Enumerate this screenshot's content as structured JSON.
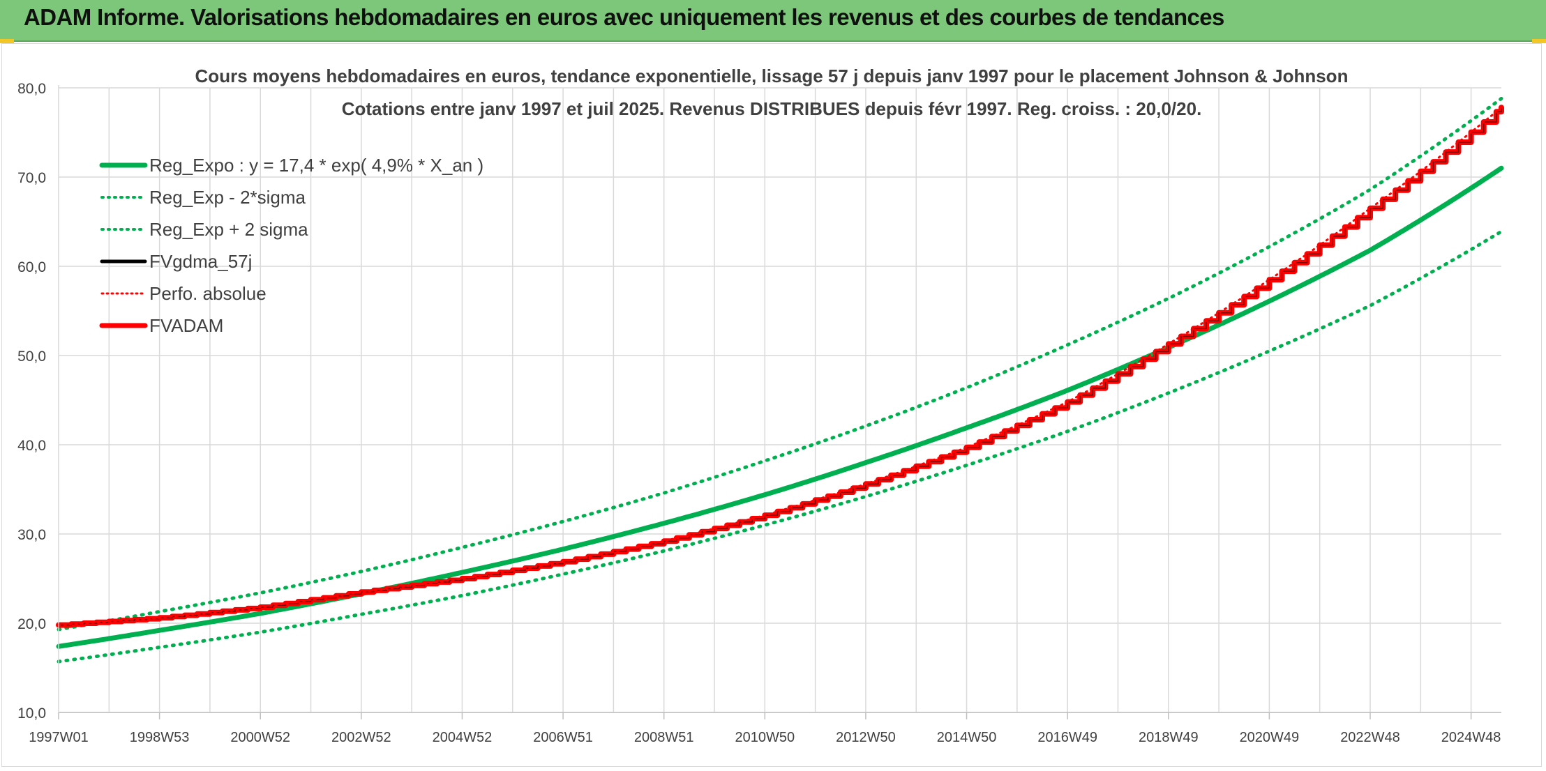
{
  "header": {
    "title": "ADAM Informe. Valorisations hebdomadaires en euros avec uniquement les revenus et des courbes de tendances"
  },
  "colors": {
    "header_bg": "#7dc77a",
    "green": "#00b050",
    "red": "#ff0000",
    "black": "#000000",
    "grid": "#d9d9d9"
  },
  "chart_data": {
    "type": "line",
    "title": "Cours moyens hebdomadaires en euros, tendance exponentielle, lissage 57 j depuis janv 1997 pour le placement Johnson & Johnson",
    "subtitle": "Cotations entre janv 1997 et juil 2025. Revenus DISTRIBUES depuis févr 1997. Reg. croiss. : 20,0/20.",
    "xlabel": "",
    "ylabel": "",
    "ylim": [
      10,
      80
    ],
    "y_ticks": [
      "10,0",
      "20,0",
      "30,0",
      "40,0",
      "50,0",
      "60,0",
      "70,0",
      "80,0"
    ],
    "x_ticks": [
      "1997W01",
      "1998W53",
      "2000W52",
      "2002W52",
      "2004W52",
      "2006W51",
      "2008W51",
      "2010W50",
      "2012W50",
      "2014W50",
      "2016W49",
      "2018W49",
      "2020W49",
      "2022W48",
      "2024W48"
    ],
    "x_tick_years": [
      1997.0,
      1999.0,
      2001.0,
      2003.0,
      2005.0,
      2007.0,
      2009.0,
      2011.0,
      2013.0,
      2015.0,
      2017.0,
      2019.0,
      2021.0,
      2023.0,
      2025.0
    ],
    "x_range": [
      1997.0,
      2025.6
    ],
    "grid": true,
    "legend_position": "top-left",
    "legend": [
      {
        "name": "Reg_Expo : y = 17,4 * exp( 4,9% *  X_an )",
        "color": "#00b050",
        "style": "solid"
      },
      {
        "name": "Reg_Exp - 2*sigma",
        "color": "#00b050",
        "style": "dotted"
      },
      {
        "name": "Reg_Exp + 2 sigma",
        "color": "#00b050",
        "style": "dotted"
      },
      {
        "name": "FVgdma_57j",
        "color": "#000000",
        "style": "solid"
      },
      {
        "name": "Perfo. absolue",
        "color": "#ff0000",
        "style": "dotted"
      },
      {
        "name": "FVADAM",
        "color": "#ff0000",
        "style": "solid"
      }
    ],
    "series": [
      {
        "name": "Reg_Expo : y = 17,4 * exp( 4,9% *  X_an )",
        "x": [
          1997.0,
          1999.0,
          2001.0,
          2003.0,
          2005.0,
          2007.0,
          2009.0,
          2011.0,
          2013.0,
          2015.0,
          2017.0,
          2019.0,
          2021.0,
          2023.0,
          2025.6
        ],
        "values": [
          17.4,
          19.2,
          21.1,
          23.3,
          25.7,
          28.3,
          31.2,
          34.4,
          38.0,
          41.9,
          46.1,
          50.9,
          56.1,
          61.8,
          71.0
        ]
      },
      {
        "name": "Reg_Exp - 2*sigma",
        "x": [
          1997.0,
          1999.0,
          2001.0,
          2003.0,
          2005.0,
          2007.0,
          2009.0,
          2011.0,
          2013.0,
          2015.0,
          2017.0,
          2019.0,
          2021.0,
          2023.0,
          2025.6
        ],
        "values": [
          15.7,
          17.3,
          19.0,
          21.0,
          23.1,
          25.5,
          28.1,
          31.0,
          34.2,
          37.7,
          41.5,
          45.8,
          50.5,
          55.6,
          63.9
        ]
      },
      {
        "name": "Reg_Exp + 2 sigma",
        "x": [
          1997.0,
          1999.0,
          2001.0,
          2003.0,
          2005.0,
          2007.0,
          2009.0,
          2011.0,
          2013.0,
          2015.0,
          2017.0,
          2019.0,
          2021.0,
          2023.0,
          2025.6
        ],
        "values": [
          19.3,
          21.3,
          23.4,
          25.8,
          28.5,
          31.4,
          34.6,
          38.2,
          42.1,
          46.4,
          51.2,
          56.4,
          62.2,
          68.6,
          78.8
        ]
      },
      {
        "name": "FVADAM",
        "x": [
          1997.0,
          1999.0,
          2001.0,
          2003.0,
          2005.0,
          2007.0,
          2009.0,
          2011.0,
          2013.0,
          2015.0,
          2017.0,
          2019.0,
          2021.0,
          2023.0,
          2025.6
        ],
        "values": [
          19.8,
          20.6,
          21.8,
          23.5,
          25.0,
          26.9,
          29.2,
          32.1,
          35.6,
          39.7,
          44.8,
          51.3,
          58.5,
          66.5,
          77.8
        ]
      },
      {
        "name": "Perfo. absolue",
        "x": [
          1997.0,
          1999.0,
          2001.0,
          2003.0,
          2005.0,
          2007.0,
          2009.0,
          2011.0,
          2013.0,
          2015.0,
          2017.0,
          2019.0,
          2021.0,
          2023.0,
          2025.6
        ],
        "values": [
          19.8,
          20.6,
          21.8,
          23.5,
          25.0,
          26.9,
          29.2,
          32.1,
          35.6,
          39.7,
          44.8,
          51.3,
          58.5,
          66.5,
          77.8
        ]
      }
    ]
  }
}
